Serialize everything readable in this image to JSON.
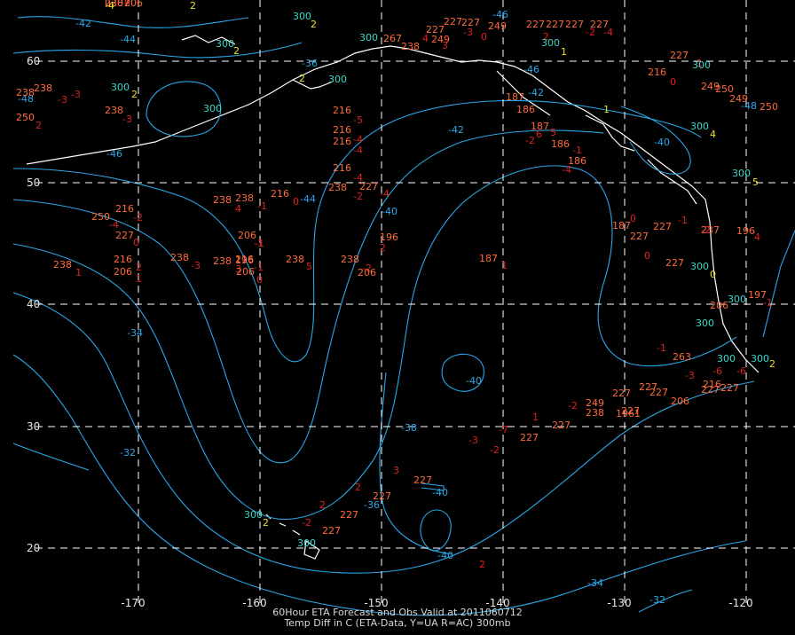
{
  "caption": {
    "line1": "60Hour ETA Forecast and Obs Valid at 2011060712",
    "line2": "Temp Diff in C (ETA-Data, Y=UA R=AC) 300mb"
  },
  "colors": {
    "background": "#000000",
    "grid": "#ffffff",
    "contour": "#2aa7e8",
    "contour_label": "#2aa7e8",
    "station_obs": "#ff6a3a",
    "temp_diff": "#e02020",
    "height_ua": "#38d8c8",
    "diff_ua": "#e8e020",
    "coastline": "#ffffff"
  },
  "axes": {
    "lon_labels": [
      "-170",
      "-160",
      "-150",
      "-140",
      "-130",
      "-120"
    ],
    "lat_labels": [
      "60",
      "50",
      "40",
      "30",
      "20"
    ]
  },
  "contour_labels": [
    "-42",
    "-44",
    "-46",
    "-48",
    "-46",
    "-42",
    "-44",
    "-40",
    "-42",
    "-34",
    "-32",
    "-40",
    "-36",
    "-38",
    "-40",
    "-34",
    "-36",
    "-40",
    "-32",
    "-46",
    "-48",
    "-40"
  ],
  "station_values": [
    "238",
    "0",
    "238",
    "-3",
    "238",
    "-3",
    "250",
    "2",
    "238",
    "-3",
    "267",
    "238",
    "4",
    "227",
    "249",
    "227",
    "3",
    "227",
    "-3",
    "249",
    "0",
    "227",
    "227",
    "227",
    "-2",
    "-4",
    "227",
    "2",
    "187",
    "186",
    "187",
    "-2",
    "6",
    "186",
    "5",
    "186",
    "-1",
    "-4",
    "216",
    "-5",
    "216",
    "-4",
    "216",
    "-4",
    "216",
    "-4",
    "238",
    "4",
    "238",
    "-1",
    "216",
    "0",
    "238",
    "-2",
    "227",
    "-4",
    "250",
    "-4",
    "216",
    "-2",
    "227",
    "0",
    "238",
    "216",
    "3",
    "-1",
    "206",
    "-1",
    "196",
    "-1",
    "238",
    "5",
    "238",
    "-2",
    "206",
    "196",
    "2",
    "187",
    "1",
    "216",
    "2",
    "206",
    "1",
    "238",
    "-3",
    "206",
    "0",
    "238",
    "1",
    "187",
    "227",
    "0",
    "227",
    "0",
    "227",
    "-1",
    "237",
    "-2",
    "196",
    "4",
    "197",
    "-1",
    "206",
    "-1",
    "263",
    "227",
    "206",
    "-3",
    "216",
    "-6",
    "227",
    "-6",
    "249",
    "-2",
    "238",
    "227",
    "227",
    "1961",
    "227",
    "227",
    "-3",
    "-2",
    "-7",
    "227",
    "1",
    "227",
    "3",
    "227",
    "2",
    "227",
    "2",
    "227",
    "-2",
    "227",
    "2",
    "227",
    "1",
    "216",
    "249",
    "0",
    "250",
    "249",
    "250",
    "0207",
    "206"
  ],
  "ua_heights": [
    "300",
    "300",
    "300",
    "300",
    "300",
    "300",
    "300",
    "300",
    "300",
    "300",
    "300",
    "300",
    "300",
    "300",
    "300",
    "300",
    "300"
  ],
  "ua_diffs": [
    "2",
    "2",
    "2",
    "2",
    "1",
    "1",
    "4",
    "5",
    "2",
    "0",
    "2",
    "2",
    "-4"
  ]
}
